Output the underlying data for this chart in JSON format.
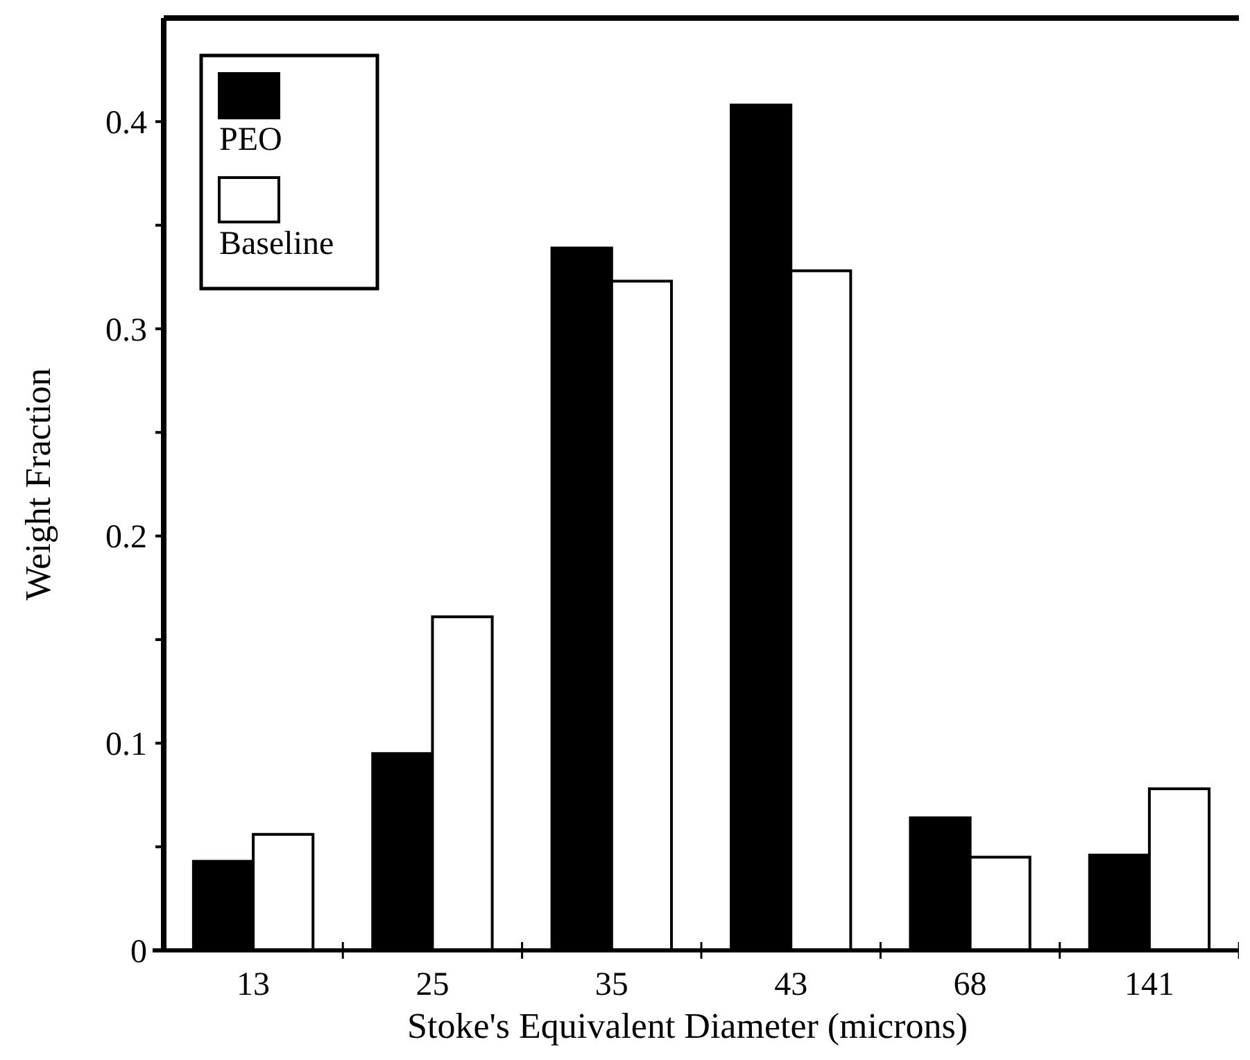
{
  "chart_data": {
    "type": "bar",
    "xlabel": "Stoke's Equivalent Diameter (microns)",
    "ylabel": "Weight Fraction",
    "categories": [
      "13",
      "25",
      "35",
      "43",
      "68",
      "141"
    ],
    "series": [
      {
        "name": "PEO",
        "color": "#000000",
        "values": [
          0.043,
          0.095,
          0.339,
          0.408,
          0.064,
          0.046
        ]
      },
      {
        "name": "Baseline",
        "color": "#ffffff",
        "values": [
          0.056,
          0.161,
          0.323,
          0.328,
          0.045,
          0.078
        ]
      }
    ],
    "ylim": [
      0,
      0.45
    ],
    "yticks": [
      0,
      {
        "value": 0.05,
        "label": null
      },
      0.1,
      {
        "value": 0.15,
        "label": null
      },
      0.2,
      {
        "value": 0.25,
        "label": null
      },
      0.3,
      {
        "value": 0.35,
        "label": null
      },
      0.4
    ],
    "legend": "top left",
    "grid": false
  }
}
